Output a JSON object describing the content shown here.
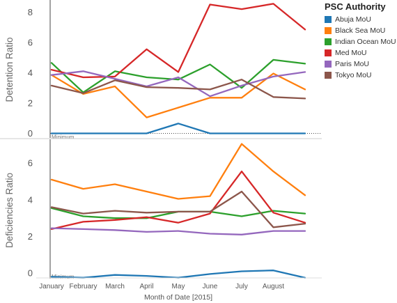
{
  "legend": {
    "title": "PSC Authority"
  },
  "colors": {
    "Abuja MoU": "#1f77b4",
    "Black Sea MoU": "#ff7f0e",
    "Indian Ocean MoU": "#2ca02c",
    "Med MoU": "#d62728",
    "Paris MoU": "#9467bd",
    "Tokyo MoU": "#8c564b"
  },
  "chart_data": [
    {
      "type": "line",
      "title": "",
      "xlabel": "Month of Date [2015]",
      "ylabel": "Detention Ratio",
      "x": [
        "January",
        "February",
        "March",
        "April",
        "May",
        "June",
        "July",
        "August",
        ""
      ],
      "ylim": [
        -0.3,
        8.8
      ],
      "yticks": [
        0,
        2,
        4,
        6,
        8
      ],
      "reference_line": {
        "label": "Minimum",
        "value": 0
      },
      "grid": false,
      "legend": "right",
      "series": [
        {
          "name": "Abuja MoU",
          "values": [
            0,
            0,
            0,
            0,
            0.65,
            0,
            0,
            0,
            0
          ]
        },
        {
          "name": "Black Sea MoU",
          "values": [
            3.85,
            2.6,
            3.1,
            1.05,
            1.7,
            2.35,
            2.35,
            3.95,
            2.9
          ]
        },
        {
          "name": "Indian Ocean MoU",
          "values": [
            4.65,
            2.7,
            4.1,
            3.7,
            3.55,
            4.55,
            3.0,
            4.85,
            4.6
          ]
        },
        {
          "name": "Med MoU",
          "values": [
            4.2,
            3.7,
            3.75,
            5.55,
            4.05,
            8.5,
            8.2,
            8.55,
            6.85
          ]
        },
        {
          "name": "Paris MoU",
          "values": [
            3.85,
            4.1,
            3.6,
            3.1,
            3.7,
            2.45,
            3.15,
            3.75,
            4.05
          ]
        },
        {
          "name": "Tokyo MoU",
          "values": [
            3.15,
            2.65,
            3.5,
            3.05,
            3.0,
            2.9,
            3.55,
            2.4,
            2.3
          ]
        }
      ]
    },
    {
      "type": "line",
      "title": "",
      "xlabel": "Month of Date [2015]",
      "ylabel": "Deficiencies Ratio",
      "x": [
        "January",
        "February",
        "March",
        "April",
        "May",
        "June",
        "July",
        "August",
        ""
      ],
      "ylim": [
        -0.3,
        7.3
      ],
      "yticks": [
        0,
        2,
        4,
        6
      ],
      "reference_line": {
        "label": "Minimum",
        "value": 0
      },
      "grid": false,
      "legend": "right",
      "series": [
        {
          "name": "Abuja MoU",
          "values": [
            -0.2,
            -0.25,
            -0.1,
            -0.15,
            -0.25,
            -0.05,
            0.1,
            0.15,
            -0.25
          ]
        },
        {
          "name": "Black Sea MoU",
          "values": [
            5.1,
            4.6,
            4.85,
            4.45,
            4.05,
            4.2,
            7.05,
            5.55,
            4.25
          ]
        },
        {
          "name": "Indian Ocean MoU",
          "values": [
            3.55,
            3.1,
            3.0,
            3.0,
            3.35,
            3.35,
            3.1,
            3.4,
            3.25
          ]
        },
        {
          "name": "Med MoU",
          "values": [
            2.4,
            2.8,
            2.9,
            3.05,
            2.75,
            3.25,
            5.55,
            3.3,
            2.75
          ]
        },
        {
          "name": "Paris MoU",
          "values": [
            2.45,
            2.4,
            2.35,
            2.25,
            2.3,
            2.15,
            2.1,
            2.3,
            2.3
          ]
        },
        {
          "name": "Tokyo MoU",
          "values": [
            3.6,
            3.25,
            3.4,
            3.3,
            3.35,
            3.35,
            4.45,
            2.5,
            2.7
          ]
        }
      ]
    }
  ]
}
